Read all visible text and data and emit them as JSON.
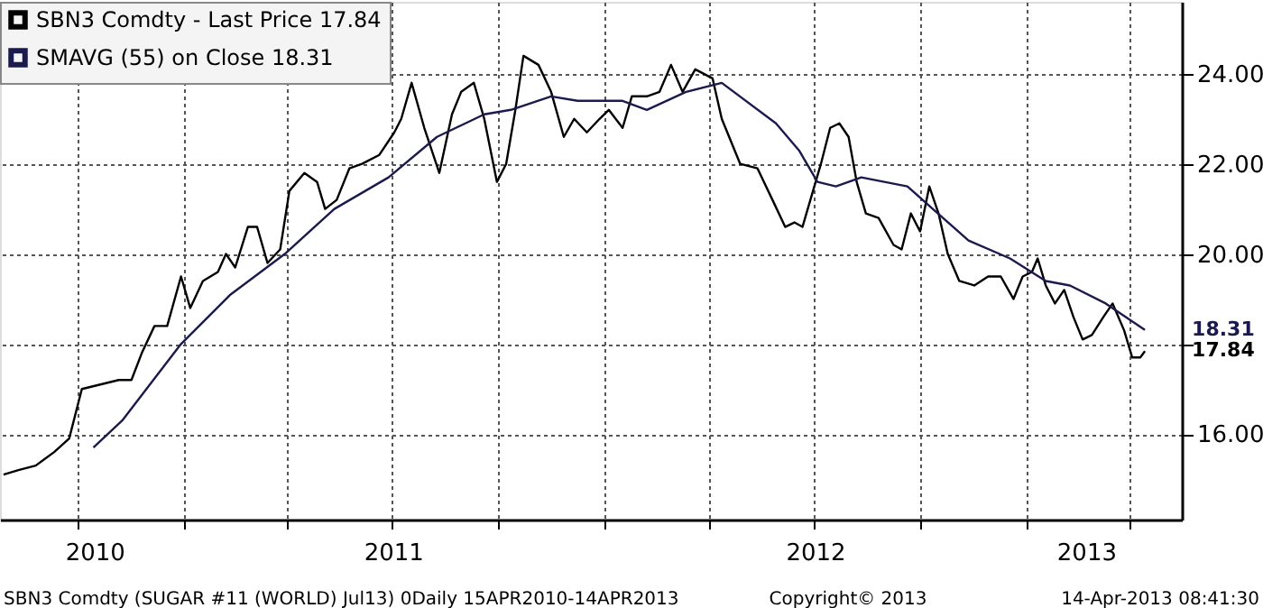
{
  "chart_data": {
    "type": "line",
    "xlim": [
      "2010-07-26",
      "2013-05-16"
    ],
    "xticks": [
      {
        "value": "2010-10-01",
        "label": null
      },
      {
        "value": "2011-01-01",
        "label": null
      },
      {
        "value": "2011-04-01",
        "label": null
      },
      {
        "value": "2011-07-01",
        "label": null
      },
      {
        "value": "2011-10-01",
        "label": null
      },
      {
        "value": "2012-01-01",
        "label": null
      },
      {
        "value": "2012-04-01",
        "label": null
      },
      {
        "value": "2012-07-01",
        "label": null
      },
      {
        "value": "2012-10-01",
        "label": null
      },
      {
        "value": "2013-01-01",
        "label": null
      },
      {
        "value": "2013-04-01",
        "label": null
      },
      {
        "value": "2010-10-16",
        "label": "2010"
      },
      {
        "value": "2011-07-02",
        "label": "2011"
      },
      {
        "value": "2012-07-02",
        "label": "2012"
      },
      {
        "value": "2013-02-22",
        "label": "2013"
      }
    ],
    "ylim": [
      14.1,
      25.6
    ],
    "yticks": [
      {
        "value": 16,
        "label": "16.00"
      },
      {
        "value": 18,
        "label": null
      },
      {
        "value": 20,
        "label": "20.00"
      },
      {
        "value": 22,
        "label": "22.00"
      },
      {
        "value": 24,
        "label": "24.00"
      }
    ],
    "grid": true,
    "legend": "top left",
    "marker": "none",
    "line_style": "solid",
    "series": [
      {
        "name": "SBN3 Comdty - Last Price 17.84",
        "color": "#000000",
        "x": [
          "2010-07-29",
          "2010-08-11",
          "2010-08-26",
          "2010-09-11",
          "2010-09-24",
          "2010-10-05",
          "2010-10-21",
          "2010-11-06",
          "2010-11-17",
          "2010-11-26",
          "2010-12-07",
          "2010-12-18",
          "2010-12-30",
          "2011-01-07",
          "2011-01-18",
          "2011-01-31",
          "2011-02-07",
          "2011-02-15",
          "2011-02-26",
          "2011-03-06",
          "2011-03-15",
          "2011-03-26",
          "2011-04-03",
          "2011-04-16",
          "2011-04-27",
          "2011-05-04",
          "2011-05-14",
          "2011-05-25",
          "2011-06-05",
          "2011-06-20",
          "2011-07-03",
          "2011-07-09",
          "2011-07-18",
          "2011-07-29",
          "2011-08-11",
          "2011-08-22",
          "2011-08-30",
          "2011-09-10",
          "2011-09-19",
          "2011-09-30",
          "2011-10-08",
          "2011-10-16",
          "2011-10-23",
          "2011-11-05",
          "2011-11-16",
          "2011-11-27",
          "2011-12-06",
          "2011-12-17",
          "2011-12-28",
          "2012-01-05",
          "2012-01-17",
          "2012-01-25",
          "2012-02-07",
          "2012-02-18",
          "2012-02-28",
          "2012-03-09",
          "2012-03-20",
          "2012-04-04",
          "2012-04-12",
          "2012-04-28",
          "2012-05-13",
          "2012-05-26",
          "2012-06-06",
          "2012-06-14",
          "2012-06-21",
          "2012-06-29",
          "2012-07-07",
          "2012-07-15",
          "2012-07-23",
          "2012-07-31",
          "2012-08-07",
          "2012-08-15",
          "2012-08-26",
          "2012-09-08",
          "2012-09-15",
          "2012-09-23",
          "2012-10-01",
          "2012-10-09",
          "2012-10-17",
          "2012-10-25",
          "2012-11-04",
          "2012-11-17",
          "2012-11-29",
          "2012-12-10",
          "2012-12-21",
          "2012-12-29",
          "2013-01-06",
          "2013-01-11",
          "2013-01-18",
          "2013-01-26",
          "2013-02-03",
          "2013-02-11",
          "2013-02-19",
          "2013-02-27",
          "2013-03-09",
          "2013-03-17",
          "2013-03-27",
          "2013-04-03",
          "2013-04-10",
          "2013-04-14"
        ],
        "values": [
          15.1,
          15.2,
          15.3,
          15.6,
          15.9,
          17.0,
          17.1,
          17.2,
          17.2,
          17.8,
          18.4,
          18.4,
          19.5,
          18.8,
          19.4,
          19.6,
          20.0,
          19.7,
          20.6,
          20.6,
          19.8,
          20.1,
          21.4,
          21.8,
          21.6,
          21.0,
          21.2,
          21.9,
          22.0,
          22.2,
          22.7,
          23.0,
          23.8,
          22.8,
          21.8,
          23.1,
          23.6,
          23.8,
          23.0,
          21.6,
          22.0,
          23.2,
          24.4,
          24.2,
          23.6,
          22.6,
          23.0,
          22.7,
          23.0,
          23.2,
          22.8,
          23.5,
          23.5,
          23.6,
          24.2,
          23.6,
          24.1,
          23.9,
          23.0,
          22.0,
          21.9,
          21.2,
          20.6,
          20.7,
          20.6,
          21.3,
          22.0,
          22.8,
          22.9,
          22.6,
          21.6,
          20.9,
          20.8,
          20.2,
          20.1,
          20.9,
          20.5,
          21.5,
          20.9,
          20.0,
          19.4,
          19.3,
          19.5,
          19.5,
          19.0,
          19.5,
          19.6,
          19.9,
          19.3,
          18.9,
          19.2,
          18.6,
          18.1,
          18.2,
          18.6,
          18.9,
          18.3,
          17.7,
          17.7,
          17.84
        ]
      },
      {
        "name": "SMAVG (55) on Close 18.31",
        "color": "#1a1a4e",
        "x": [
          "2010-10-15",
          "2010-11-09",
          "2010-12-30",
          "2011-02-11",
          "2011-03-30",
          "2011-05-12",
          "2011-06-28",
          "2011-08-09",
          "2011-09-19",
          "2011-10-12",
          "2011-11-16",
          "2011-12-09",
          "2012-01-17",
          "2012-02-07",
          "2012-03-12",
          "2012-04-12",
          "2012-05-29",
          "2012-06-18",
          "2012-07-04",
          "2012-07-20",
          "2012-08-11",
          "2012-08-31",
          "2012-09-20",
          "2012-10-12",
          "2012-11-12",
          "2012-12-18",
          "2013-01-18",
          "2013-02-08",
          "2013-03-11",
          "2013-04-14"
        ],
        "values": [
          15.7,
          16.3,
          18.0,
          19.1,
          20.0,
          21.0,
          21.7,
          22.6,
          23.1,
          23.2,
          23.5,
          23.4,
          23.4,
          23.2,
          23.6,
          23.8,
          22.9,
          22.3,
          21.6,
          21.5,
          21.7,
          21.6,
          21.5,
          21.0,
          20.3,
          19.9,
          19.4,
          19.3,
          18.9,
          18.31
        ]
      }
    ],
    "annotations": [
      {
        "text": "18.31",
        "x": "2013-04-14",
        "y": 18.31
      },
      {
        "text": "17.84",
        "x": "2013-04-14",
        "y": 17.84
      },
      "SBN3 Comdty (SUGAR #11 (WORLD) Jul13) 0Daily 15APR2010-14APR2013",
      "Copyright© 2013",
      "14-Apr-2013 08:41:30"
    ]
  }
}
